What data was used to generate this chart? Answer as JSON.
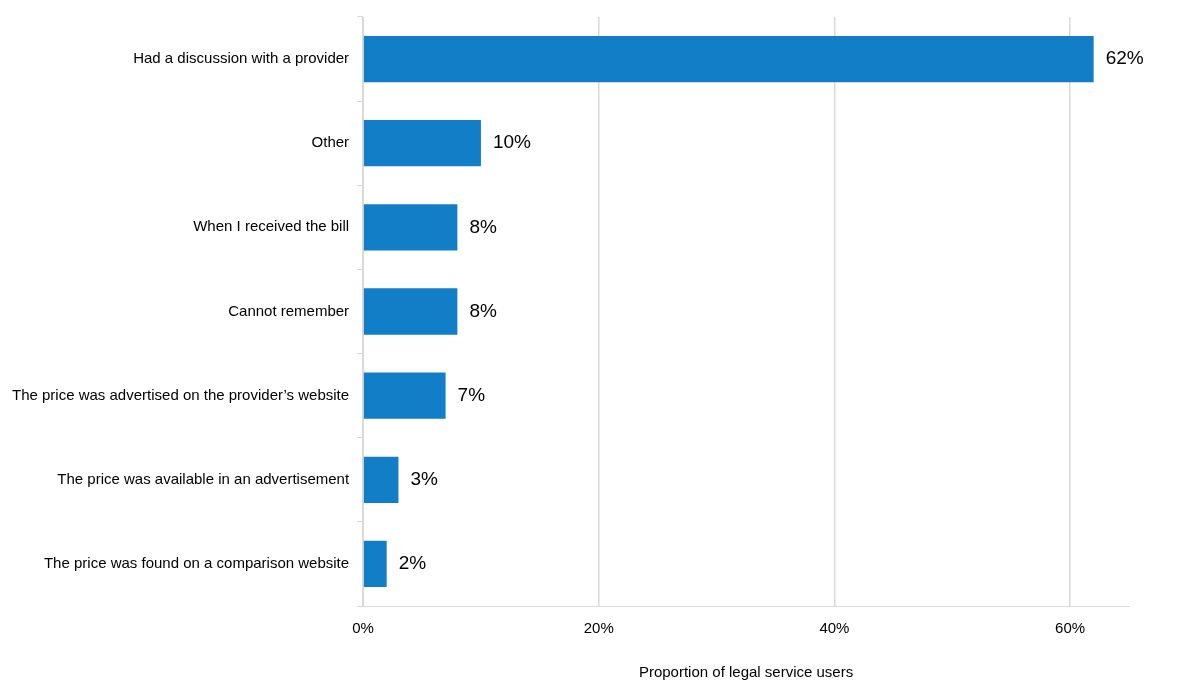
{
  "chart_data": {
    "type": "bar",
    "orientation": "horizontal",
    "categories": [
      "Had a discussion with a provider",
      "Other",
      "When I received the bill",
      "Cannot remember",
      "The price was advertised on the provider’s website",
      "The price was available in an advertisement",
      "The price was found on a comparison website"
    ],
    "values": [
      62,
      10,
      8,
      8,
      7,
      3,
      2
    ],
    "value_labels": [
      "62%",
      "10%",
      "8%",
      "8%",
      "7%",
      "3%",
      "2%"
    ],
    "color": "#137ec8",
    "xlabel": "Proportion of legal service users",
    "xlim": [
      0,
      65
    ],
    "xticks": [
      {
        "value": 0,
        "label": "0%"
      },
      {
        "value": 20,
        "label": "20%"
      },
      {
        "value": 40,
        "label": "40%"
      },
      {
        "value": 60,
        "label": "60%"
      }
    ],
    "grid": "x",
    "legend": false
  }
}
